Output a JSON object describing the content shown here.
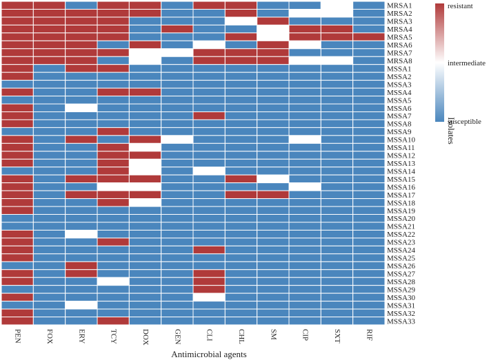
{
  "chart_data": {
    "type": "heatmap",
    "xlabel": "Antimicrobial agents",
    "ylabel": "Isolates",
    "legend": {
      "position": "right",
      "labels": {
        "high": "resistant",
        "mid": "intermediate",
        "low": "susceptible"
      },
      "colors": {
        "high": "#b03a3a",
        "mid": "#ffffff",
        "low": "#4a86bd"
      }
    },
    "levels": {
      "S": "susceptible",
      "I": "intermediate",
      "R": "resistant"
    },
    "columns": [
      "PEN",
      "FOX",
      "ERY",
      "TCY",
      "DOX",
      "GEN",
      "CLI",
      "CHL",
      "SM",
      "CIP",
      "SXT",
      "RIF"
    ],
    "rows": [
      "MRSA1",
      "MRSA2",
      "MRSA3",
      "MRSA4",
      "MRSA5",
      "MRSA6",
      "MRSA7",
      "MRSA8",
      "MSSA1",
      "MSSA2",
      "MSSA3",
      "MSSA4",
      "MSSA5",
      "MSSA6",
      "MSSA7",
      "MSSA8",
      "MSSA9",
      "MSSA10",
      "MSSA11",
      "MSSA12",
      "MSSA13",
      "MSSA14",
      "MSSA15",
      "MSSA16",
      "MSSA17",
      "MSSA18",
      "MSSA19",
      "MSSA20",
      "MSSA21",
      "MSSA22",
      "MSSA23",
      "MSSA24",
      "MSSA25",
      "MSSA26",
      "MSSA27",
      "MSSA28",
      "MSSA29",
      "MSSA30",
      "MSSA31",
      "MSSA32",
      "MSSA33"
    ],
    "values": [
      [
        "R",
        "R",
        "S",
        "R",
        "R",
        "S",
        "R",
        "R",
        "S",
        "S",
        "I",
        "S"
      ],
      [
        "R",
        "R",
        "R",
        "R",
        "R",
        "S",
        "S",
        "R",
        "S",
        "I",
        "I",
        "S"
      ],
      [
        "R",
        "R",
        "R",
        "R",
        "S",
        "S",
        "S",
        "I",
        "R",
        "S",
        "S",
        "S"
      ],
      [
        "R",
        "R",
        "R",
        "R",
        "S",
        "R",
        "S",
        "S",
        "I",
        "R",
        "R",
        "S"
      ],
      [
        "R",
        "R",
        "R",
        "R",
        "S",
        "S",
        "S",
        "R",
        "I",
        "R",
        "R",
        "R"
      ],
      [
        "R",
        "R",
        "R",
        "S",
        "R",
        "S",
        "I",
        "S",
        "R",
        "I",
        "S",
        "S"
      ],
      [
        "R",
        "R",
        "R",
        "R",
        "I",
        "I",
        "R",
        "R",
        "R",
        "S",
        "S",
        "S"
      ],
      [
        "R",
        "R",
        "R",
        "S",
        "I",
        "S",
        "R",
        "R",
        "R",
        "I",
        "I",
        "S"
      ],
      [
        "R",
        "S",
        "R",
        "R",
        "S",
        "S",
        "S",
        "S",
        "S",
        "S",
        "S",
        "S"
      ],
      [
        "R",
        "S",
        "S",
        "S",
        "S",
        "S",
        "S",
        "S",
        "S",
        "S",
        "S",
        "S"
      ],
      [
        "S",
        "S",
        "S",
        "S",
        "S",
        "S",
        "S",
        "S",
        "S",
        "S",
        "S",
        "S"
      ],
      [
        "R",
        "S",
        "S",
        "R",
        "R",
        "S",
        "S",
        "S",
        "S",
        "S",
        "S",
        "S"
      ],
      [
        "S",
        "S",
        "S",
        "S",
        "S",
        "S",
        "S",
        "S",
        "S",
        "S",
        "S",
        "S"
      ],
      [
        "R",
        "S",
        "I",
        "S",
        "S",
        "S",
        "S",
        "S",
        "S",
        "S",
        "S",
        "S"
      ],
      [
        "R",
        "S",
        "S",
        "S",
        "S",
        "S",
        "R",
        "S",
        "S",
        "S",
        "S",
        "S"
      ],
      [
        "R",
        "S",
        "S",
        "S",
        "S",
        "S",
        "S",
        "S",
        "S",
        "S",
        "S",
        "S"
      ],
      [
        "S",
        "S",
        "S",
        "R",
        "S",
        "S",
        "S",
        "S",
        "S",
        "S",
        "S",
        "S"
      ],
      [
        "R",
        "S",
        "R",
        "S",
        "R",
        "I",
        "S",
        "S",
        "S",
        "I",
        "S",
        "S"
      ],
      [
        "R",
        "S",
        "S",
        "R",
        "I",
        "S",
        "S",
        "S",
        "S",
        "S",
        "S",
        "S"
      ],
      [
        "R",
        "S",
        "S",
        "R",
        "R",
        "S",
        "S",
        "S",
        "S",
        "S",
        "S",
        "S"
      ],
      [
        "R",
        "S",
        "S",
        "R",
        "I",
        "S",
        "S",
        "S",
        "S",
        "S",
        "S",
        "S"
      ],
      [
        "S",
        "S",
        "S",
        "R",
        "I",
        "S",
        "I",
        "S",
        "S",
        "S",
        "S",
        "S"
      ],
      [
        "R",
        "S",
        "R",
        "R",
        "R",
        "S",
        "S",
        "R",
        "I",
        "S",
        "S",
        "S"
      ],
      [
        "R",
        "S",
        "S",
        "I",
        "I",
        "S",
        "S",
        "S",
        "S",
        "I",
        "S",
        "S"
      ],
      [
        "R",
        "S",
        "R",
        "R",
        "R",
        "S",
        "S",
        "R",
        "R",
        "S",
        "S",
        "S"
      ],
      [
        "R",
        "S",
        "S",
        "R",
        "I",
        "S",
        "S",
        "S",
        "S",
        "S",
        "S",
        "S"
      ],
      [
        "R",
        "S",
        "S",
        "S",
        "S",
        "S",
        "S",
        "S",
        "S",
        "S",
        "S",
        "S"
      ],
      [
        "S",
        "S",
        "S",
        "S",
        "S",
        "S",
        "S",
        "S",
        "S",
        "S",
        "S",
        "S"
      ],
      [
        "S",
        "S",
        "S",
        "S",
        "S",
        "S",
        "S",
        "S",
        "S",
        "S",
        "S",
        "S"
      ],
      [
        "R",
        "S",
        "I",
        "S",
        "S",
        "S",
        "S",
        "S",
        "S",
        "S",
        "S",
        "S"
      ],
      [
        "R",
        "S",
        "S",
        "R",
        "S",
        "S",
        "S",
        "S",
        "S",
        "S",
        "S",
        "S"
      ],
      [
        "R",
        "S",
        "S",
        "S",
        "S",
        "S",
        "R",
        "S",
        "S",
        "S",
        "S",
        "S"
      ],
      [
        "R",
        "S",
        "S",
        "S",
        "S",
        "S",
        "S",
        "S",
        "S",
        "S",
        "S",
        "S"
      ],
      [
        "S",
        "S",
        "R",
        "S",
        "S",
        "S",
        "S",
        "S",
        "S",
        "S",
        "S",
        "S"
      ],
      [
        "R",
        "S",
        "R",
        "S",
        "S",
        "S",
        "R",
        "S",
        "S",
        "S",
        "S",
        "S"
      ],
      [
        "R",
        "S",
        "S",
        "I",
        "S",
        "S",
        "R",
        "S",
        "S",
        "S",
        "S",
        "S"
      ],
      [
        "S",
        "S",
        "S",
        "S",
        "S",
        "S",
        "R",
        "S",
        "S",
        "S",
        "S",
        "S"
      ],
      [
        "R",
        "S",
        "S",
        "S",
        "S",
        "S",
        "I",
        "S",
        "S",
        "S",
        "S",
        "S"
      ],
      [
        "S",
        "S",
        "I",
        "S",
        "S",
        "S",
        "S",
        "S",
        "S",
        "S",
        "S",
        "S"
      ],
      [
        "R",
        "S",
        "S",
        "S",
        "S",
        "S",
        "S",
        "S",
        "S",
        "S",
        "S",
        "S"
      ],
      [
        "R",
        "S",
        "S",
        "R",
        "S",
        "S",
        "S",
        "S",
        "S",
        "S",
        "S",
        "S"
      ]
    ]
  }
}
